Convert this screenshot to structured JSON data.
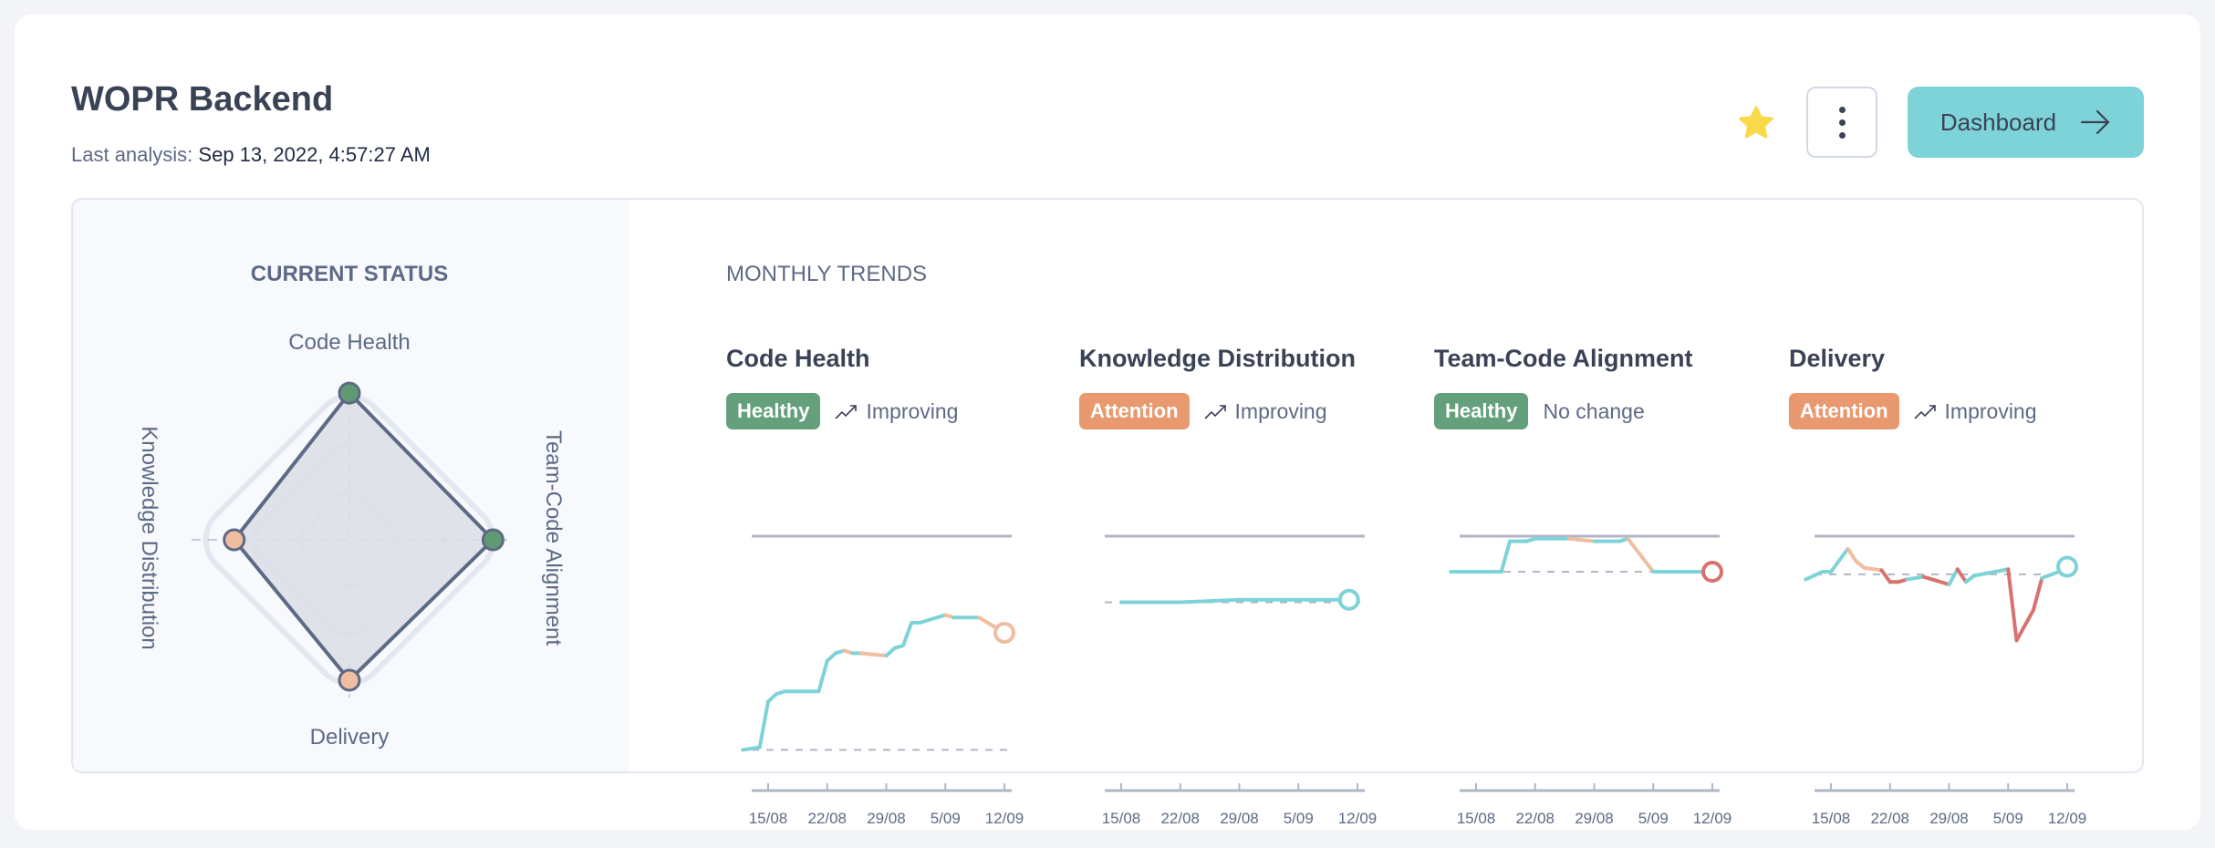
{
  "header": {
    "title": "WOPR Backend",
    "last_analysis_label": "Last analysis:",
    "last_analysis_value": "Sep 13, 2022, 4:57:27 AM",
    "favorite_icon": "star-icon",
    "favorite_color": "#f9d949",
    "menu_icon": "kebab-menu-icon",
    "dashboard_label": "Dashboard",
    "dashboard_icon": "arrow-right-icon",
    "dashboard_color": "#7dd3d8"
  },
  "colors": {
    "healthy": "#63a07b",
    "attention": "#e8996f",
    "line_healthy": "#7dd3d8",
    "line_attention": "#efbd9f",
    "line_alert": "#d9726f",
    "radar_fill": "#dcdfe7",
    "radar_stroke": "#5d6a85"
  },
  "current_status": {
    "heading": "CURRENT STATUS",
    "axes": [
      {
        "label": "Code Health",
        "value": 0.93,
        "status": "healthy"
      },
      {
        "label": "Team-Code Alignment",
        "value": 0.91,
        "status": "healthy"
      },
      {
        "label": "Delivery",
        "value": 0.89,
        "status": "attention"
      },
      {
        "label": "Knowledge Distribution",
        "value": 0.73,
        "status": "attention"
      }
    ]
  },
  "monthly_trends": {
    "heading": "MONTHLY TRENDS",
    "x_ticks": [
      "15/08",
      "22/08",
      "29/08",
      "5/09",
      "12/09"
    ]
  },
  "chart_data": [
    {
      "type": "line",
      "title": "Code Health",
      "badge": "Healthy",
      "badge_status": "healthy",
      "trend": "Improving",
      "trend_icon": "trending-up-icon",
      "ylim": [
        0,
        1
      ],
      "reference": 0.16,
      "end_marker": "attention",
      "points": [
        [
          "12/08",
          0.16,
          "healthy"
        ],
        [
          "14/08",
          0.17,
          "healthy"
        ],
        [
          "15/08",
          0.35,
          "healthy"
        ],
        [
          "16/08",
          0.38,
          "healthy"
        ],
        [
          "17/08",
          0.39,
          "healthy"
        ],
        [
          "21/08",
          0.39,
          "healthy"
        ],
        [
          "22/08",
          0.51,
          "healthy"
        ],
        [
          "23/08",
          0.54,
          "healthy"
        ],
        [
          "24/08",
          0.55,
          "healthy"
        ],
        [
          "25/08",
          0.54,
          "attention"
        ],
        [
          "26/08",
          0.54,
          "healthy"
        ],
        [
          "29/08",
          0.53,
          "attention"
        ],
        [
          "30/08",
          0.56,
          "healthy"
        ],
        [
          "31/08",
          0.57,
          "healthy"
        ],
        [
          "01/09",
          0.66,
          "healthy"
        ],
        [
          "02/09",
          0.66,
          "healthy"
        ],
        [
          "05/09",
          0.69,
          "healthy"
        ],
        [
          "06/09",
          0.68,
          "attention"
        ],
        [
          "09/09",
          0.68,
          "healthy"
        ],
        [
          "12/09",
          0.62,
          "attention"
        ]
      ]
    },
    {
      "type": "line",
      "title": "Knowledge Distribution",
      "badge": "Attention",
      "badge_status": "attention",
      "trend": "Improving",
      "trend_icon": "trending-up-icon",
      "ylim": [
        0,
        1
      ],
      "reference": 0.74,
      "end_marker": "healthy",
      "points": [
        [
          "15/08",
          0.74,
          "healthy"
        ],
        [
          "22/08",
          0.74,
          "healthy"
        ],
        [
          "29/08",
          0.75,
          "healthy"
        ],
        [
          "11/09",
          0.75,
          "healthy"
        ]
      ]
    },
    {
      "type": "line",
      "title": "Team-Code Alignment",
      "badge": "Healthy",
      "badge_status": "healthy",
      "trend": "No change",
      "trend_icon": "",
      "ylim": [
        0,
        1
      ],
      "reference": 0.86,
      "end_marker": "alert",
      "points": [
        [
          "12/08",
          0.86,
          "healthy"
        ],
        [
          "18/08",
          0.86,
          "healthy"
        ],
        [
          "19/08",
          0.98,
          "healthy"
        ],
        [
          "21/08",
          0.98,
          "healthy"
        ],
        [
          "22/08",
          0.99,
          "healthy"
        ],
        [
          "26/08",
          0.99,
          "healthy"
        ],
        [
          "29/08",
          0.98,
          "attention"
        ],
        [
          "01/09",
          0.98,
          "healthy"
        ],
        [
          "02/09",
          0.99,
          "healthy"
        ],
        [
          "05/09",
          0.86,
          "attention"
        ],
        [
          "12/09",
          0.86,
          "healthy"
        ]
      ]
    },
    {
      "type": "line",
      "title": "Delivery",
      "badge": "Attention",
      "badge_status": "attention",
      "trend": "Improving",
      "trend_icon": "trending-up-icon",
      "ylim": [
        0,
        1
      ],
      "reference": 0.85,
      "end_marker": "healthy",
      "points": [
        [
          "12/08",
          0.83,
          "alert"
        ],
        [
          "14/08",
          0.86,
          "healthy"
        ],
        [
          "15/08",
          0.86,
          "healthy"
        ],
        [
          "17/08",
          0.95,
          "healthy"
        ],
        [
          "18/08",
          0.9,
          "attention"
        ],
        [
          "19/08",
          0.875,
          "attention"
        ],
        [
          "21/08",
          0.866,
          "attention"
        ],
        [
          "22/08",
          0.82,
          "alert"
        ],
        [
          "23/08",
          0.82,
          "alert"
        ],
        [
          "24/08",
          0.83,
          "alert"
        ],
        [
          "26/08",
          0.84,
          "healthy"
        ],
        [
          "27/08",
          0.83,
          "alert"
        ],
        [
          "29/08",
          0.81,
          "alert"
        ],
        [
          "30/08",
          0.87,
          "healthy"
        ],
        [
          "31/08",
          0.82,
          "alert"
        ],
        [
          "01/09",
          0.845,
          "healthy"
        ],
        [
          "03/09",
          0.857,
          "healthy"
        ],
        [
          "05/09",
          0.87,
          "healthy"
        ],
        [
          "06/09",
          0.59,
          "alert"
        ],
        [
          "08/09",
          0.71,
          "alert"
        ],
        [
          "09/09",
          0.835,
          "alert"
        ],
        [
          "11/09",
          0.86,
          "healthy"
        ],
        [
          "12/09",
          0.88,
          "healthy"
        ]
      ]
    }
  ]
}
